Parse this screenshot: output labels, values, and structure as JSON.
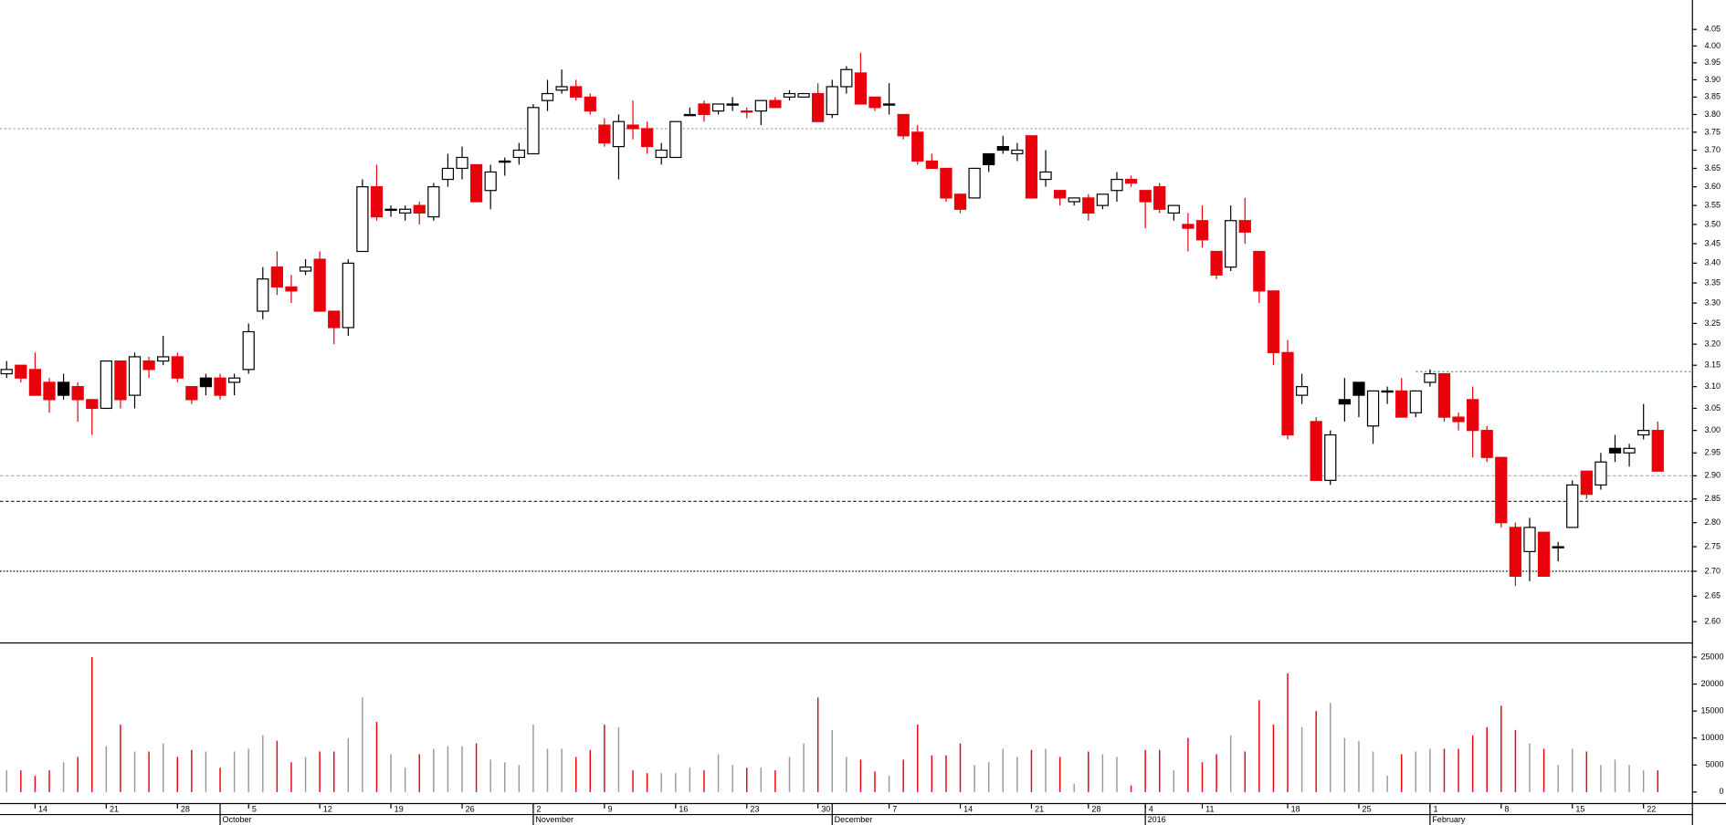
{
  "chart_data": {
    "type": "candlestick",
    "ylog": true,
    "ylim": [
      2.56,
      4.14
    ],
    "yticks": [
      {
        "value": 2.6,
        "label": "2.60"
      },
      {
        "value": 2.65,
        "label": "2.65"
      },
      {
        "value": 2.7,
        "label": "2.70"
      },
      {
        "value": 2.75,
        "label": "2.75"
      },
      {
        "value": 2.8,
        "label": "2.80"
      },
      {
        "value": 2.85,
        "label": "2.85"
      },
      {
        "value": 2.9,
        "label": "2.90"
      },
      {
        "value": 2.95,
        "label": "2.95"
      },
      {
        "value": 3.0,
        "label": "3.00"
      },
      {
        "value": 3.05,
        "label": "3.05"
      },
      {
        "value": 3.1,
        "label": "3.10"
      },
      {
        "value": 3.15,
        "label": "3.15"
      },
      {
        "value": 3.2,
        "label": "3.20"
      },
      {
        "value": 3.25,
        "label": "3.25"
      },
      {
        "value": 3.3,
        "label": "3.30"
      },
      {
        "value": 3.35,
        "label": "3.35"
      },
      {
        "value": 3.4,
        "label": "3.40"
      },
      {
        "value": 3.45,
        "label": "3.45"
      },
      {
        "value": 3.5,
        "label": "3.50"
      },
      {
        "value": 3.55,
        "label": "3.55"
      },
      {
        "value": 3.6,
        "label": "3.60"
      },
      {
        "value": 3.65,
        "label": "3.65"
      },
      {
        "value": 3.7,
        "label": "3.70"
      },
      {
        "value": 3.75,
        "label": "3.75"
      },
      {
        "value": 3.8,
        "label": "3.80"
      },
      {
        "value": 3.85,
        "label": "3.85"
      },
      {
        "value": 3.9,
        "label": "3.90"
      },
      {
        "value": 3.95,
        "label": "3.95"
      },
      {
        "value": 4.0,
        "label": "4.00"
      },
      {
        "value": 4.05,
        "label": "4.05"
      }
    ],
    "volume_ylim": [
      0,
      26500
    ],
    "volume_yticks": [
      0,
      5000,
      10000,
      15000,
      20000,
      25000
    ],
    "xticks": [
      {
        "value": 2,
        "label": "14"
      },
      {
        "value": 7,
        "label": "21"
      },
      {
        "value": 12,
        "label": "28"
      },
      {
        "value": 17,
        "label": "5"
      },
      {
        "value": 22,
        "label": "12"
      },
      {
        "value": 27,
        "label": "19"
      },
      {
        "value": 32,
        "label": "26"
      },
      {
        "value": 37,
        "label": "2"
      },
      {
        "value": 42,
        "label": "9"
      },
      {
        "value": 47,
        "label": "16"
      },
      {
        "value": 52,
        "label": "23"
      },
      {
        "value": 57,
        "label": "30"
      },
      {
        "value": 62,
        "label": "7"
      },
      {
        "value": 67,
        "label": "14"
      },
      {
        "value": 72,
        "label": "21"
      },
      {
        "value": 76,
        "label": "28"
      },
      {
        "value": 80,
        "label": "4"
      },
      {
        "value": 84,
        "label": "11"
      },
      {
        "value": 90,
        "label": "18"
      },
      {
        "value": 95,
        "label": "25"
      },
      {
        "value": 100,
        "label": "1"
      },
      {
        "value": 105,
        "label": "8"
      },
      {
        "value": 110,
        "label": "15"
      },
      {
        "value": 115,
        "label": "22"
      }
    ],
    "month_ticks": [
      {
        "value": 15,
        "label": "October"
      },
      {
        "value": 37,
        "label": "November"
      },
      {
        "value": 58,
        "label": "December"
      },
      {
        "value": 80,
        "label": "2016"
      },
      {
        "value": 100,
        "label": "February"
      }
    ],
    "down_color": "#e8000b",
    "volume_color": "#999999",
    "reference_lines": [
      {
        "value": 3.76,
        "color": "#aaaaaa",
        "dash": "2,2"
      },
      {
        "value": 3.135,
        "color": "#4a9a7a",
        "dash": "2,2",
        "start": 99
      },
      {
        "value": 2.9,
        "color": "#aaaaaa",
        "dash": "3,2"
      },
      {
        "value": 2.845,
        "color": "#333333",
        "dash": "3,2"
      },
      {
        "value": 2.7,
        "color": "#000000",
        "dash": "1.5,1.5"
      }
    ],
    "open": [
      3.13,
      3.15,
      3.14,
      3.11,
      3.08,
      3.1,
      3.07,
      3.05,
      3.16,
      3.08,
      3.16,
      3.16,
      3.17,
      3.1,
      3.1,
      3.12,
      3.11,
      3.14,
      3.28,
      3.39,
      3.34,
      3.38,
      3.41,
      3.28,
      3.24,
      3.43,
      3.6,
      3.54,
      3.53,
      3.55,
      3.52,
      3.62,
      3.65,
      3.66,
      3.59,
      3.67,
      3.68,
      3.69,
      3.84,
      3.87,
      3.88,
      3.85,
      3.77,
      3.71,
      3.77,
      3.76,
      3.68,
      3.68,
      3.8,
      3.83,
      3.81,
      3.83,
      3.81,
      3.81,
      3.84,
      3.85,
      3.85,
      3.86,
      3.8,
      3.88,
      3.92,
      3.85,
      3.83,
      3.8,
      3.75,
      3.67,
      3.65,
      3.58,
      3.57,
      3.66,
      3.7,
      3.69,
      3.74,
      3.62,
      3.59,
      3.56,
      3.57,
      3.55,
      3.59,
      3.62,
      3.59,
      3.6,
      3.53,
      3.5,
      3.51,
      3.43,
      3.39,
      3.51,
      3.43,
      3.33,
      3.18,
      3.08,
      3.02,
      2.89,
      3.06,
      3.08,
      3.01,
      3.09,
      3.09,
      3.04,
      3.11,
      3.13,
      3.03,
      3.07,
      3.0,
      2.94,
      2.79,
      2.74,
      2.78,
      2.75,
      2.79,
      2.91,
      2.88,
      2.95,
      2.95,
      2.99,
      3.0
    ],
    "high": [
      3.16,
      3.15,
      3.18,
      3.12,
      3.13,
      3.11,
      3.07,
      3.16,
      3.16,
      3.18,
      3.17,
      3.22,
      3.18,
      3.1,
      3.13,
      3.13,
      3.13,
      3.25,
      3.39,
      3.43,
      3.37,
      3.41,
      3.43,
      3.28,
      3.41,
      3.62,
      3.66,
      3.55,
      3.55,
      3.56,
      3.61,
      3.69,
      3.71,
      3.66,
      3.66,
      3.68,
      3.72,
      3.83,
      3.9,
      3.93,
      3.9,
      3.86,
      3.79,
      3.8,
      3.84,
      3.78,
      3.72,
      3.78,
      3.82,
      3.84,
      3.83,
      3.85,
      3.82,
      3.84,
      3.85,
      3.87,
      3.86,
      3.89,
      3.9,
      3.94,
      3.98,
      3.85,
      3.89,
      3.8,
      3.77,
      3.69,
      3.65,
      3.58,
      3.65,
      3.69,
      3.74,
      3.72,
      3.74,
      3.7,
      3.59,
      3.57,
      3.58,
      3.58,
      3.64,
      3.63,
      3.59,
      3.61,
      3.55,
      3.53,
      3.55,
      3.43,
      3.55,
      3.57,
      3.43,
      3.33,
      3.21,
      3.13,
      3.03,
      3.0,
      3.12,
      3.11,
      3.09,
      3.1,
      3.12,
      3.09,
      3.14,
      3.13,
      3.04,
      3.1,
      3.01,
      2.94,
      2.8,
      2.81,
      2.78,
      2.76,
      2.89,
      2.91,
      2.95,
      2.99,
      2.97,
      3.06,
      3.02
    ],
    "low": [
      3.12,
      3.11,
      3.08,
      3.04,
      3.07,
      3.02,
      2.99,
      3.05,
      3.05,
      3.05,
      3.12,
      3.15,
      3.11,
      3.06,
      3.08,
      3.07,
      3.08,
      3.13,
      3.26,
      3.32,
      3.3,
      3.37,
      3.28,
      3.2,
      3.22,
      3.43,
      3.51,
      3.52,
      3.51,
      3.5,
      3.51,
      3.6,
      3.62,
      3.56,
      3.54,
      3.63,
      3.66,
      3.69,
      3.81,
      3.86,
      3.84,
      3.8,
      3.71,
      3.62,
      3.73,
      3.69,
      3.66,
      3.68,
      3.8,
      3.78,
      3.8,
      3.81,
      3.79,
      3.77,
      3.82,
      3.84,
      3.85,
      3.78,
      3.79,
      3.86,
      3.83,
      3.81,
      3.8,
      3.73,
      3.66,
      3.65,
      3.56,
      3.53,
      3.57,
      3.64,
      3.69,
      3.67,
      3.57,
      3.6,
      3.55,
      3.55,
      3.51,
      3.54,
      3.56,
      3.6,
      3.49,
      3.53,
      3.51,
      3.43,
      3.44,
      3.36,
      3.38,
      3.45,
      3.3,
      3.15,
      2.98,
      3.06,
      2.89,
      2.88,
      3.02,
      3.03,
      2.97,
      3.06,
      3.03,
      3.03,
      3.1,
      3.02,
      3.0,
      2.94,
      2.93,
      2.79,
      2.67,
      2.68,
      2.69,
      2.72,
      2.79,
      2.85,
      2.87,
      2.93,
      2.92,
      2.98,
      2.91
    ],
    "close": [
      3.14,
      3.12,
      3.08,
      3.07,
      3.11,
      3.07,
      3.05,
      3.16,
      3.07,
      3.17,
      3.14,
      3.17,
      3.12,
      3.07,
      3.12,
      3.08,
      3.12,
      3.23,
      3.36,
      3.34,
      3.33,
      3.39,
      3.28,
      3.24,
      3.4,
      3.6,
      3.52,
      3.54,
      3.54,
      3.53,
      3.6,
      3.65,
      3.68,
      3.56,
      3.64,
      3.67,
      3.7,
      3.82,
      3.86,
      3.88,
      3.85,
      3.81,
      3.72,
      3.78,
      3.76,
      3.71,
      3.7,
      3.78,
      3.8,
      3.8,
      3.83,
      3.83,
      3.81,
      3.84,
      3.82,
      3.86,
      3.86,
      3.78,
      3.88,
      3.93,
      3.83,
      3.82,
      3.83,
      3.74,
      3.67,
      3.65,
      3.57,
      3.54,
      3.65,
      3.69,
      3.71,
      3.7,
      3.57,
      3.64,
      3.57,
      3.57,
      3.53,
      3.58,
      3.62,
      3.61,
      3.56,
      3.54,
      3.55,
      3.49,
      3.46,
      3.37,
      3.51,
      3.48,
      3.33,
      3.18,
      2.99,
      3.1,
      2.89,
      2.99,
      3.07,
      3.11,
      3.09,
      3.09,
      3.03,
      3.09,
      3.13,
      3.03,
      3.02,
      3.0,
      2.94,
      2.8,
      2.69,
      2.79,
      2.69,
      2.75,
      2.88,
      2.86,
      2.93,
      2.96,
      2.96,
      3.0,
      2.91
    ],
    "colors": [
      "#ffffff",
      "#e8000b",
      "#e8000b",
      "#e8000b",
      "#000000",
      "#e8000b",
      "#e8000b",
      "#ffffff",
      "#e8000b",
      "#ffffff",
      "#e8000b",
      "#ffffff",
      "#e8000b",
      "#e8000b",
      "#000000",
      "#e8000b",
      "#ffffff",
      "#ffffff",
      "#ffffff",
      "#e8000b",
      "#e8000b",
      "#ffffff",
      "#e8000b",
      "#e8000b",
      "#ffffff",
      "#ffffff",
      "#e8000b",
      "#000000",
      "#ffffff",
      "#e8000b",
      "#ffffff",
      "#ffffff",
      "#ffffff",
      "#e8000b",
      "#ffffff",
      "#000000",
      "#ffffff",
      "#ffffff",
      "#ffffff",
      "#ffffff",
      "#e8000b",
      "#e8000b",
      "#e8000b",
      "#ffffff",
      "#e8000b",
      "#e8000b",
      "#ffffff",
      "#ffffff",
      "#000000",
      "#e8000b",
      "#ffffff",
      "#000000",
      "#e8000b",
      "#ffffff",
      "#e8000b",
      "#ffffff",
      "#ffffff",
      "#e8000b",
      "#ffffff",
      "#ffffff",
      "#e8000b",
      "#e8000b",
      "#000000",
      "#e8000b",
      "#e8000b",
      "#e8000b",
      "#e8000b",
      "#e8000b",
      "#ffffff",
      "#000000",
      "#000000",
      "#ffffff",
      "#e8000b",
      "#ffffff",
      "#e8000b",
      "#ffffff",
      "#e8000b",
      "#ffffff",
      "#ffffff",
      "#e8000b",
      "#e8000b",
      "#e8000b",
      "#ffffff",
      "#e8000b",
      "#e8000b",
      "#e8000b",
      "#ffffff",
      "#e8000b",
      "#e8000b",
      "#e8000b",
      "#e8000b",
      "#ffffff",
      "#e8000b",
      "#ffffff",
      "#000000",
      "#000000",
      "#ffffff",
      "#000000",
      "#e8000b",
      "#ffffff",
      "#ffffff",
      "#e8000b",
      "#e8000b",
      "#e8000b",
      "#e8000b",
      "#e8000b",
      "#e8000b",
      "#ffffff",
      "#e8000b",
      "#000000",
      "#ffffff",
      "#e8000b",
      "#ffffff",
      "#000000",
      "#ffffff",
      "#ffffff",
      "#e8000b"
    ],
    "volume": [
      4000,
      4000,
      3000,
      4000,
      5500,
      6500,
      25000,
      8500,
      12500,
      7500,
      7500,
      9000,
      6500,
      7800,
      7500,
      4500,
      7500,
      8000,
      10500,
      9500,
      5500,
      6500,
      7500,
      7500,
      10000,
      17500,
      13000,
      7000,
      4500,
      7000,
      8000,
      8500,
      8500,
      9000,
      6000,
      5500,
      5000,
      12500,
      8000,
      8000,
      6500,
      7800,
      12500,
      12000,
      4000,
      3500,
      3500,
      3500,
      4500,
      4000,
      7000,
      5000,
      4500,
      4500,
      4000,
      6500,
      9000,
      17500,
      11500,
      6500,
      6000,
      3800,
      3000,
      6000,
      12500,
      6800,
      6800,
      9000,
      5000,
      5500,
      8000,
      6500,
      7800,
      8000,
      6500,
      1500,
      7500,
      7000,
      6500,
      1200,
      7800,
      7800,
      4000,
      10000,
      5500,
      7000,
      10500,
      7500,
      17000,
      12500,
      22000,
      12000,
      15000,
      16500,
      10000,
      9500,
      7500,
      3000,
      7000,
      7500,
      8000,
      8000,
      8000,
      10500,
      12000,
      16000,
      11500,
      9000,
      8000,
      5000,
      8000,
      7500,
      5000,
      6000,
      5000,
      4000,
      4000
    ]
  }
}
